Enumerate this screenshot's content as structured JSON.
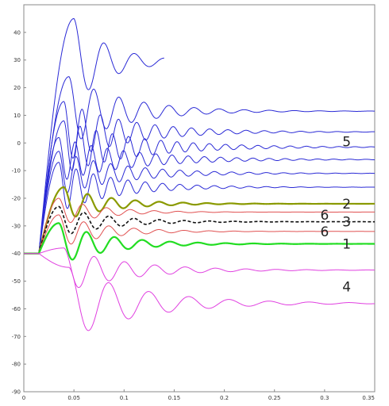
{
  "chart_data": {
    "type": "line",
    "title": "",
    "xlabel": "",
    "ylabel": "",
    "xlim": [
      0,
      0.35
    ],
    "ylim": [
      -90,
      50
    ],
    "grid": false,
    "legend": "none",
    "x_ticks": [
      0,
      0.05,
      0.1,
      0.15,
      0.2,
      0.25,
      0.3,
      0.35
    ],
    "x_tick_labels": [
      "0",
      "0.05",
      "0.1",
      "0.15",
      "0.2",
      "0.25",
      "0.3",
      "0.35"
    ],
    "y_ticks": [
      -90,
      -80,
      -70,
      -60,
      -50,
      -40,
      -30,
      -20,
      -10,
      0,
      10,
      20,
      30,
      40
    ],
    "y_tick_labels": [
      "-90",
      "-80",
      "-70",
      "-60",
      "-50",
      "-40",
      "-30",
      "-20",
      "-10",
      "0",
      "10",
      "20",
      "30",
      "40"
    ],
    "colors": {
      "blue": "#2a2ad6",
      "olive": "#8a9a00",
      "red": "#e05050",
      "black": "#111111",
      "green": "#22dd22",
      "magenta": "#e040e0"
    },
    "series": [
      {
        "color": "blue",
        "style": "solid",
        "width": 1,
        "x": [
          0,
          0.015,
          0.05,
          0.14
        ],
        "y": [
          -40,
          -40,
          45,
          29.5
        ],
        "damping": 28,
        "freq": 33
      },
      {
        "color": "blue",
        "style": "solid",
        "width": 1,
        "x": [
          0,
          0.015,
          0.045,
          0.35
        ],
        "y": [
          -40,
          -40,
          24,
          11.5
        ],
        "damping": 18,
        "freq": 40
      },
      {
        "color": "blue",
        "style": "solid",
        "width": 1,
        "x": [
          0,
          0.015,
          0.04,
          0.35
        ],
        "y": [
          -40,
          -40,
          15,
          4
        ],
        "damping": 16,
        "freq": 55
      },
      {
        "color": "blue",
        "style": "solid",
        "width": 1,
        "x": [
          0,
          0.015,
          0.04,
          0.35
        ],
        "y": [
          -40,
          -40,
          8,
          -1.5
        ],
        "damping": 14,
        "freq": 62
      },
      {
        "color": "blue",
        "style": "solid",
        "width": 1,
        "x": [
          0,
          0.015,
          0.035,
          0.35
        ],
        "y": [
          -40,
          -40,
          2,
          -6
        ],
        "damping": 14,
        "freq": 62
      },
      {
        "color": "blue",
        "style": "solid",
        "width": 1,
        "x": [
          0,
          0.015,
          0.035,
          0.35
        ],
        "y": [
          -40,
          -40,
          -3,
          -11
        ],
        "damping": 16,
        "freq": 58
      },
      {
        "color": "blue",
        "style": "solid",
        "width": 1,
        "x": [
          0,
          0.015,
          0.035,
          0.35
        ],
        "y": [
          -40,
          -40,
          -7,
          -16
        ],
        "damping": 18,
        "freq": 58
      },
      {
        "color": "olive",
        "style": "solid",
        "width": 2.2,
        "x": [
          0,
          0.015,
          0.04,
          0.35
        ],
        "y": [
          -40,
          -40,
          -16,
          -22
        ],
        "damping": 22,
        "freq": 42
      },
      {
        "color": "red",
        "style": "solid",
        "width": 1,
        "x": [
          0,
          0.015,
          0.035,
          0.35
        ],
        "y": [
          -40,
          -40,
          -20,
          -25
        ],
        "damping": 24,
        "freq": 42
      },
      {
        "color": "black",
        "style": "dashed",
        "width": 1.6,
        "x": [
          0,
          0.015,
          0.035,
          0.35
        ],
        "y": [
          -40,
          -40,
          -23,
          -28.5
        ],
        "damping": 20,
        "freq": 40
      },
      {
        "color": "red",
        "style": "solid",
        "width": 1,
        "x": [
          0,
          0.015,
          0.035,
          0.35
        ],
        "y": [
          -40,
          -40,
          -26,
          -32
        ],
        "damping": 22,
        "freq": 40
      },
      {
        "color": "green",
        "style": "solid",
        "width": 2.2,
        "x": [
          0,
          0.015,
          0.035,
          0.35
        ],
        "y": [
          -40,
          -40,
          -29,
          -36.5
        ],
        "damping": 20,
        "freq": 36
      },
      {
        "color": "magenta",
        "style": "solid",
        "width": 1,
        "x": [
          0,
          0.015,
          0.04,
          0.35
        ],
        "y": [
          -40,
          -40,
          -38,
          -46
        ],
        "damping": 16,
        "freq": 33
      },
      {
        "color": "magenta",
        "style": "solid",
        "width": 1,
        "x": [
          0,
          0.015,
          0.045,
          0.35
        ],
        "y": [
          -40,
          -40,
          -45,
          -58
        ],
        "damping": 14,
        "freq": 25
      }
    ],
    "annotations": [
      {
        "text": "5",
        "x": 0.322,
        "y": 0.5
      },
      {
        "text": "2",
        "x": 0.322,
        "y": -22
      },
      {
        "text": "6",
        "x": 0.3,
        "y": -26
      },
      {
        "text": "3",
        "x": 0.322,
        "y": -28.5
      },
      {
        "text": "6",
        "x": 0.3,
        "y": -32
      },
      {
        "text": "1",
        "x": 0.322,
        "y": -36.5
      },
      {
        "text": "4",
        "x": 0.322,
        "y": -52
      }
    ]
  }
}
